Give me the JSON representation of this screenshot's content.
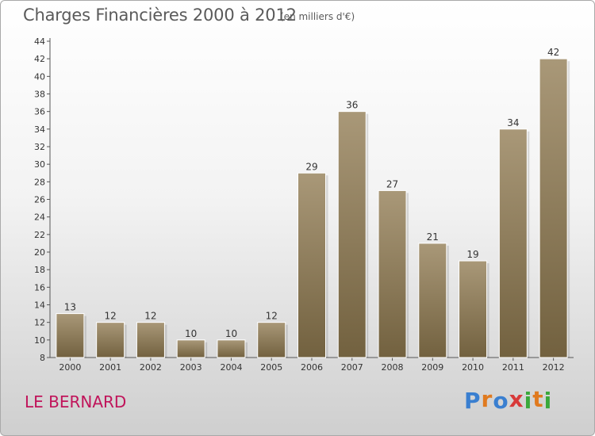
{
  "header": {
    "title": "Charges Financières 2000 à 2012",
    "unit": "(en milliers d'€)"
  },
  "footer": {
    "place": "LE BERNARD",
    "logo": "Proxiti"
  },
  "colors": {
    "bar_light": "#a99878",
    "bar_dark": "#72613f",
    "place_text": "#c0145a",
    "logo_letters": [
      "#3a7fd0",
      "#e07a1f",
      "#3a7fd0",
      "#d83a3a",
      "#3aa83a",
      "#e07a1f",
      "#3aa83a"
    ]
  },
  "chart_data": {
    "type": "bar",
    "title": "Charges Financières 2000 à 2012",
    "subtitle": "(en milliers d'€)",
    "categories": [
      "2000",
      "2001",
      "2002",
      "2003",
      "2004",
      "2005",
      "2006",
      "2007",
      "2008",
      "2009",
      "2010",
      "2011",
      "2012"
    ],
    "values": [
      13,
      12,
      12,
      10,
      10,
      12,
      29,
      36,
      27,
      21,
      19,
      34,
      42
    ],
    "ylim": [
      8,
      44
    ],
    "yticks": [
      8,
      10,
      12,
      14,
      16,
      18,
      20,
      22,
      24,
      26,
      28,
      30,
      32,
      34,
      36,
      38,
      40,
      42,
      44
    ],
    "grid": false,
    "data_labels": true
  }
}
